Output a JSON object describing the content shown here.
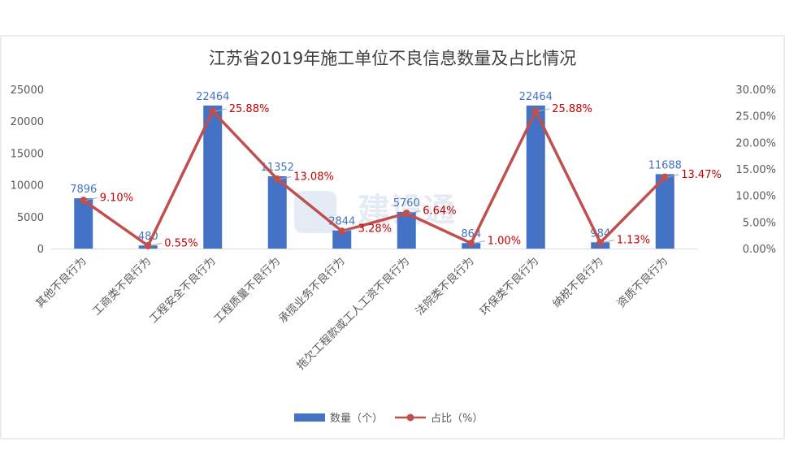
{
  "chart_data": {
    "type": "bar",
    "title": "江苏省2019年施工单位不良信息数量及占比情况",
    "categories": [
      "其他不良行为",
      "工商类不良行为",
      "工程安全不良行为",
      "工程质量不良行为",
      "承揽业务不良行为",
      "拖欠工程款或工人工资不良行为",
      "法院类不良行为",
      "环保类不良行为",
      "纳税不良行为",
      "资质不良行为"
    ],
    "series": [
      {
        "name": "数量（个）",
        "type": "bar",
        "axis": "left",
        "values": [
          7896,
          480,
          22464,
          11352,
          2844,
          5760,
          864,
          22464,
          984,
          11688
        ],
        "labels": [
          "7896",
          "480",
          "22464",
          "11352",
          "2844",
          "5760",
          "864",
          "22464",
          "984",
          "11688"
        ],
        "color": "#4472c4"
      },
      {
        "name": "占比（%）",
        "type": "line",
        "axis": "right",
        "values": [
          9.1,
          0.55,
          25.88,
          13.08,
          3.28,
          6.64,
          1.0,
          25.88,
          1.13,
          13.47
        ],
        "labels": [
          "9.10%",
          "0.55%",
          "25.88%",
          "13.08%",
          "3.28%",
          "6.64%",
          "1.00%",
          "25.88%",
          "1.13%",
          "13.47%"
        ],
        "color": "#c0504d"
      }
    ],
    "ylim": [
      0,
      25000
    ],
    "y_ticks": [
      "0",
      "5000",
      "10000",
      "15000",
      "20000",
      "25000"
    ],
    "y2lim": [
      0,
      30
    ],
    "y2_ticks": [
      "0.00%",
      "5.00%",
      "10.00%",
      "15.00%",
      "20.00%",
      "25.00%",
      "30.00%"
    ],
    "grid": false,
    "legend": "bottom",
    "watermark": "建设通"
  }
}
